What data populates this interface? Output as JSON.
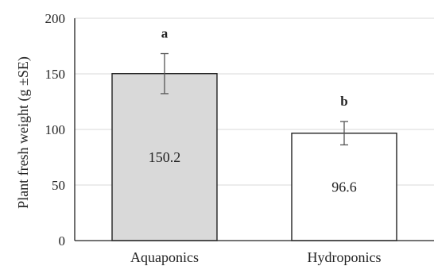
{
  "chart_data": {
    "type": "bar",
    "categories": [
      "Aquaponics",
      "Hydroponics"
    ],
    "values": [
      150.2,
      96.6
    ],
    "error": [
      18,
      10.5
    ],
    "significance": [
      "a",
      "b"
    ],
    "data_labels": [
      "150.2",
      "96.6"
    ],
    "ylabel": "Plant fresh weight (g ±SE)",
    "xlabel": "",
    "ylim": [
      0,
      200
    ],
    "yticks": [
      0,
      50,
      100,
      150,
      200
    ],
    "grid": true,
    "bar_colors": [
      "#d9d9d9",
      "#ffffff"
    ],
    "bar_edge_color": "#222222",
    "gridline_color": "#d9d9d9"
  }
}
